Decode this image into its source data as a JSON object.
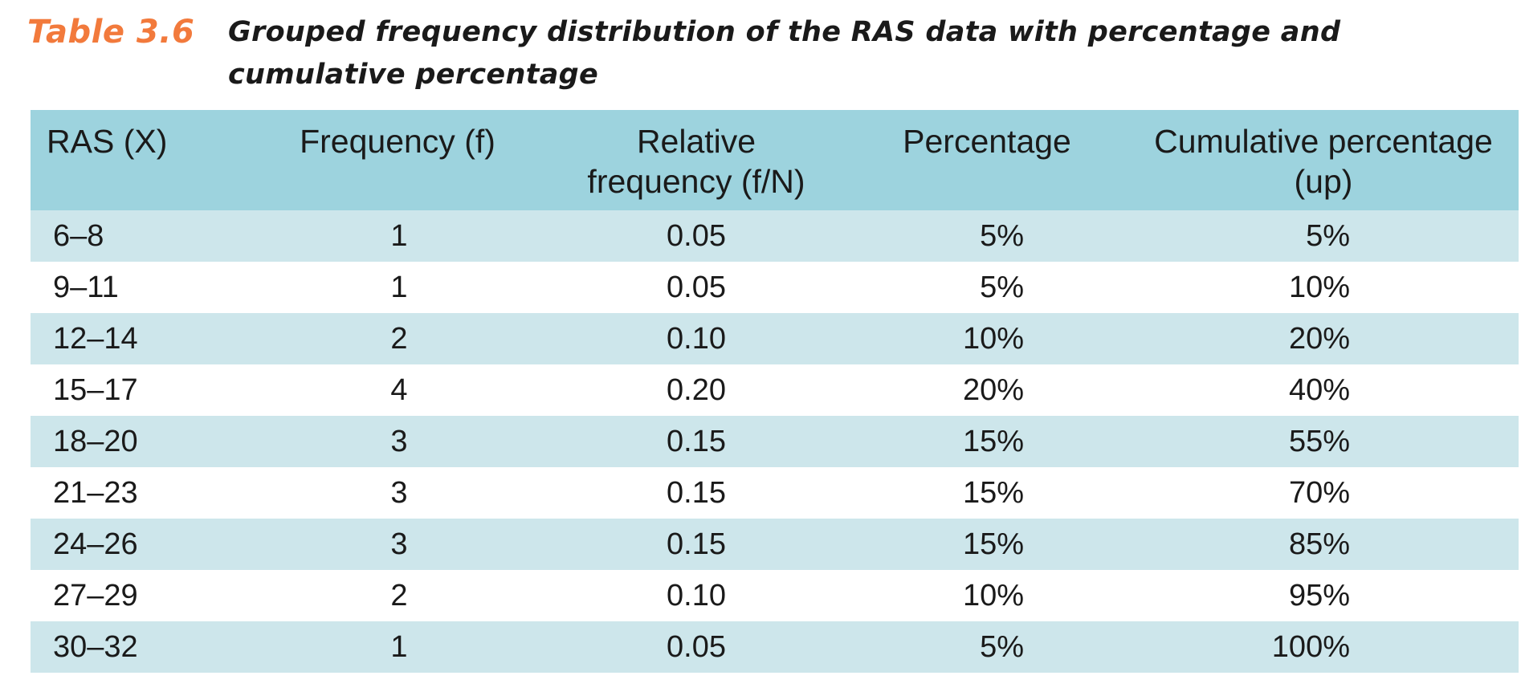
{
  "caption": {
    "label": "Table 3.6",
    "text": "Grouped frequency distribution of the RAS data with percentage and cumulative percentage"
  },
  "header": {
    "col1": "RAS (X)",
    "col2": "Frequency (f)",
    "col3_line1": "Relative",
    "col3_line2": "frequency (f/N)",
    "col4": "Percentage",
    "col5_line1": "Cumulative percentage",
    "col5_line2": "(up)"
  },
  "rows": [
    {
      "range": "6–8",
      "f": "1",
      "rel": "0.05",
      "pct": "5%",
      "cum": "5%"
    },
    {
      "range": "9–11",
      "f": "1",
      "rel": "0.05",
      "pct": "5%",
      "cum": "10%"
    },
    {
      "range": "12–14",
      "f": "2",
      "rel": "0.10",
      "pct": "10%",
      "cum": "20%"
    },
    {
      "range": "15–17",
      "f": "4",
      "rel": "0.20",
      "pct": "20%",
      "cum": "40%"
    },
    {
      "range": "18–20",
      "f": "3",
      "rel": "0.15",
      "pct": "15%",
      "cum": "55%"
    },
    {
      "range": "21–23",
      "f": "3",
      "rel": "0.15",
      "pct": "15%",
      "cum": "70%"
    },
    {
      "range": "24–26",
      "f": "3",
      "rel": "0.15",
      "pct": "15%",
      "cum": "85%"
    },
    {
      "range": "27–29",
      "f": "2",
      "rel": "0.10",
      "pct": "10%",
      "cum": "95%"
    },
    {
      "range": "30–32",
      "f": "1",
      "rel": "0.05",
      "pct": "5%",
      "cum": "100%"
    }
  ],
  "colors": {
    "caption_label": "#f27a3c",
    "header_bg": "#9dd3de",
    "row_shade": "#cde6eb"
  }
}
